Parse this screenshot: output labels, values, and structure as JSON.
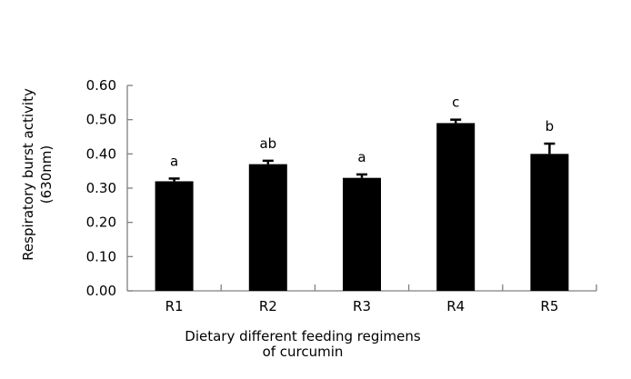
{
  "chart_data": {
    "type": "bar",
    "title": "",
    "xlabel_lines": [
      "Dietary different feeding regimens",
      "of curcumin"
    ],
    "ylabel_lines": [
      "Respiratory burst activity",
      "(630nm)"
    ],
    "categories": [
      "R1",
      "R2",
      "R3",
      "R4",
      "R5"
    ],
    "values": [
      0.32,
      0.37,
      0.33,
      0.49,
      0.4
    ],
    "errors": [
      0.008,
      0.01,
      0.01,
      0.01,
      0.03
    ],
    "significance": [
      "a",
      "ab",
      "a",
      "c",
      "b"
    ],
    "ylim": [
      0,
      0.6
    ],
    "yticks": [
      "0.00",
      "0.10",
      "0.20",
      "0.30",
      "0.40",
      "0.50",
      "0.60"
    ],
    "ytick_values": [
      0,
      0.1,
      0.2,
      0.3,
      0.4,
      0.5,
      0.6
    ],
    "grid": false,
    "legend": "none",
    "bar_color": "#000000",
    "axis_color": "#808080"
  }
}
